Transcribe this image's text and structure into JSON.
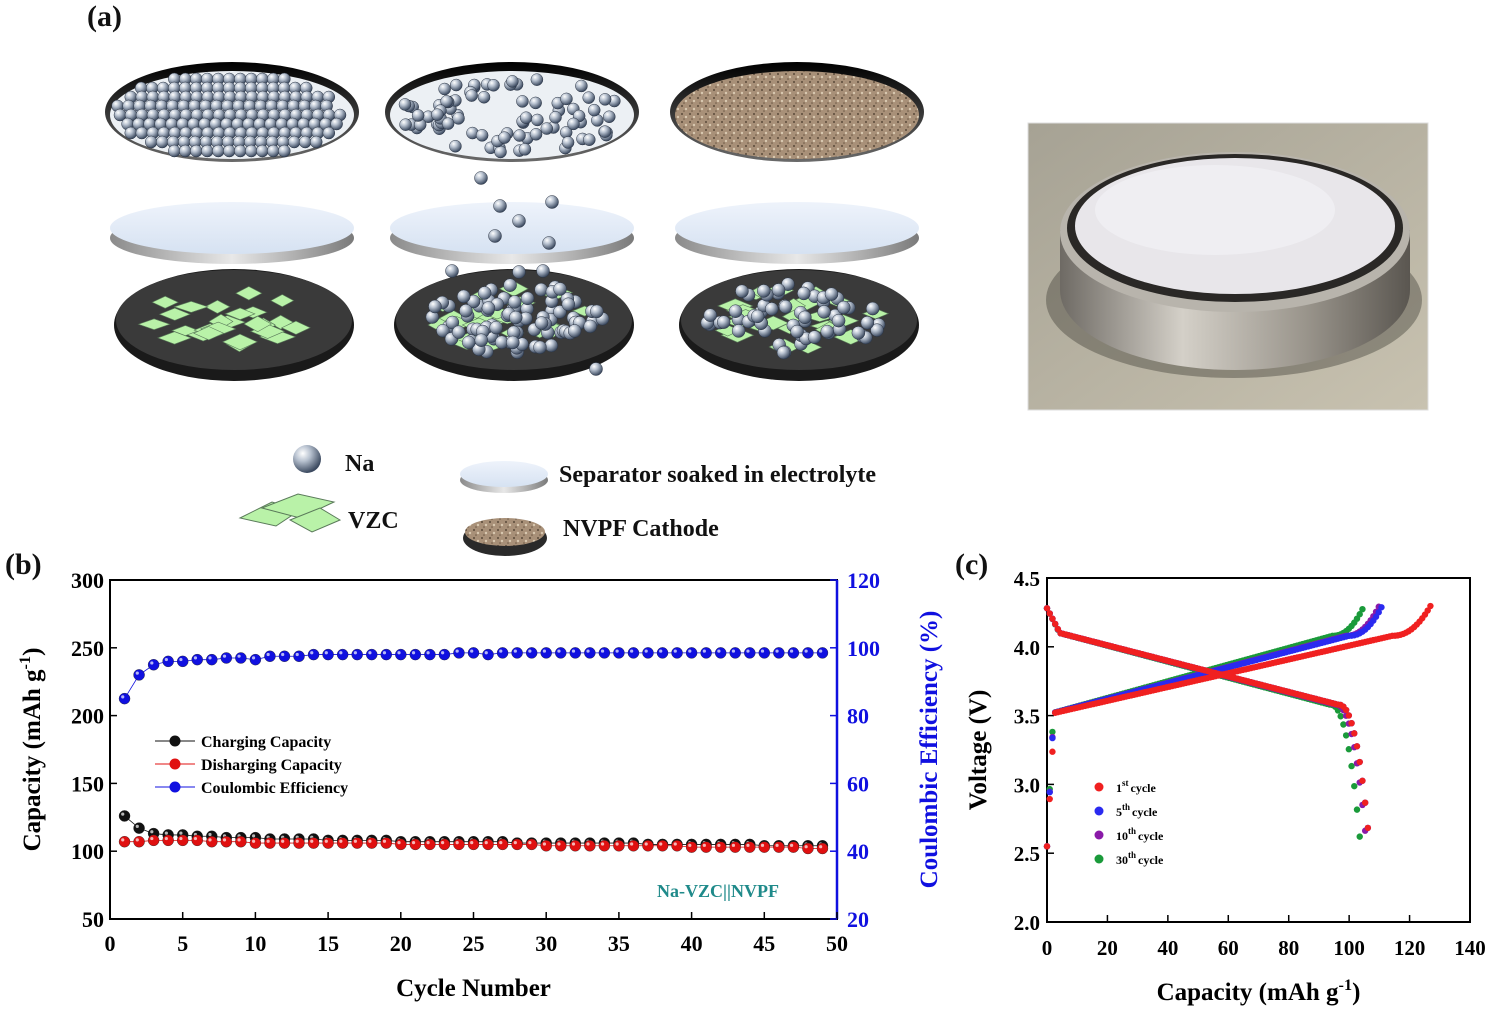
{
  "panel_labels": {
    "a": "(a)",
    "b": "(b)",
    "c": "(c)"
  },
  "legend_a": {
    "na": "Na",
    "vzc": "VZC",
    "separator": "Separator soaked in electrolyte",
    "cathode": "NVPF Cathode"
  },
  "colors": {
    "charging": "#111111",
    "discharging": "#e01010",
    "coulombic": "#1010e0",
    "annotation": "#1f8a8a",
    "cycle1": "#f02020",
    "cycle5": "#2a2af0",
    "cycle10": "#8a1aa8",
    "cycle30": "#1a9a3a",
    "vzc_flake": "#b9f2a8",
    "right_axis": "#1010e0"
  },
  "chart_data": [
    {
      "type": "scatter",
      "panel": "b",
      "xlabel": "Cycle Number",
      "ylabel": "Capacity (mAh g-1)",
      "ylabel_parts": {
        "pre": "Capacity (mAh g",
        "sup": "-1",
        "post": ")"
      },
      "y2label": "Coulombic Efficiency (%)",
      "xlim": [
        0,
        50
      ],
      "ylim": [
        50,
        300
      ],
      "y2lim": [
        20,
        120
      ],
      "x_ticks": [
        "0",
        "5",
        "10",
        "15",
        "20",
        "25",
        "30",
        "35",
        "40",
        "45",
        "50"
      ],
      "y_ticks": [
        "50",
        "100",
        "150",
        "200",
        "250",
        "300"
      ],
      "y2_ticks": [
        "20",
        "40",
        "60",
        "80",
        "100",
        "120"
      ],
      "annotation": "Na-VZC||NVPF",
      "legend": [
        "Charging Capacity",
        "Disharging Capacity",
        "Coulombic Efficiency"
      ],
      "legend_position": "center-left",
      "x": [
        1,
        2,
        3,
        4,
        5,
        6,
        7,
        8,
        9,
        10,
        11,
        12,
        13,
        14,
        15,
        16,
        17,
        18,
        19,
        20,
        21,
        22,
        23,
        24,
        25,
        26,
        27,
        28,
        29,
        30,
        31,
        32,
        33,
        34,
        35,
        36,
        37,
        38,
        39,
        40,
        41,
        42,
        43,
        44,
        45,
        46,
        47,
        48,
        49
      ],
      "series": [
        {
          "name": "Charging Capacity",
          "axis": "left",
          "values": [
            126,
            117,
            113,
            112,
            112,
            111,
            111,
            110,
            110,
            110,
            109,
            109,
            109,
            109,
            108,
            108,
            108,
            108,
            108,
            107,
            107,
            107,
            107,
            107,
            107,
            107,
            107,
            106,
            106,
            106,
            106,
            106,
            106,
            106,
            106,
            106,
            105,
            105,
            105,
            105,
            105,
            105,
            105,
            105,
            104,
            104,
            104,
            104,
            104
          ]
        },
        {
          "name": "Disharging Capacity",
          "axis": "left",
          "values": [
            107,
            107,
            108,
            108,
            108,
            108,
            107,
            107,
            107,
            106,
            106,
            106,
            106,
            106,
            106,
            106,
            106,
            106,
            106,
            105,
            105,
            105,
            105,
            105,
            105,
            105,
            105,
            105,
            105,
            104,
            104,
            104,
            104,
            104,
            104,
            104,
            104,
            104,
            104,
            103,
            103,
            103,
            103,
            103,
            103,
            103,
            103,
            102,
            102
          ]
        },
        {
          "name": "Coulombic Efficiency",
          "axis": "right",
          "values": [
            85,
            92,
            95,
            96,
            96,
            96.5,
            96.5,
            97,
            97,
            96.5,
            97.5,
            97.5,
            97.5,
            98,
            98,
            98,
            98,
            98,
            98,
            98,
            98,
            98,
            98,
            98.5,
            98.5,
            98,
            98.5,
            98.5,
            98.5,
            98.5,
            98.5,
            98.5,
            98.5,
            98.5,
            98.5,
            98.5,
            98.5,
            98.5,
            98.5,
            98.5,
            98.5,
            98.5,
            98.5,
            98.5,
            98.5,
            98.5,
            98.5,
            98.5,
            98.5
          ]
        }
      ]
    },
    {
      "type": "line",
      "panel": "c",
      "xlabel": "Capacity (mAh g-1)",
      "xlabel_parts": {
        "pre": "Capacity (mAh g",
        "sup": "-1",
        "post": ")"
      },
      "ylabel": "Voltage (V)",
      "xlim": [
        0,
        140
      ],
      "ylim": [
        2.0,
        4.5
      ],
      "x_ticks": [
        "0",
        "20",
        "40",
        "60",
        "80",
        "100",
        "120",
        "140"
      ],
      "y_ticks": [
        "2.0",
        "2.5",
        "3.0",
        "3.5",
        "4.0",
        "4.5"
      ],
      "legend_position": "left-middle",
      "series": [
        {
          "name": "1st cycle",
          "label": "1",
          "label_sup": "st",
          "label_sub": "cycle",
          "charge_end": 127,
          "discharge_end": 107
        },
        {
          "name": "5th cycle",
          "label": "5",
          "label_sup": "th",
          "label_sub": "cycle",
          "charge_end": 111,
          "discharge_end": 107
        },
        {
          "name": "10th cycle",
          "label": "10",
          "label_sup": "th",
          "label_sub": "cycle",
          "charge_end": 110,
          "discharge_end": 106
        },
        {
          "name": "30th cycle",
          "label": "30",
          "label_sup": "th",
          "label_sub": "cycle",
          "charge_end": 105,
          "discharge_end": 104
        }
      ]
    }
  ]
}
